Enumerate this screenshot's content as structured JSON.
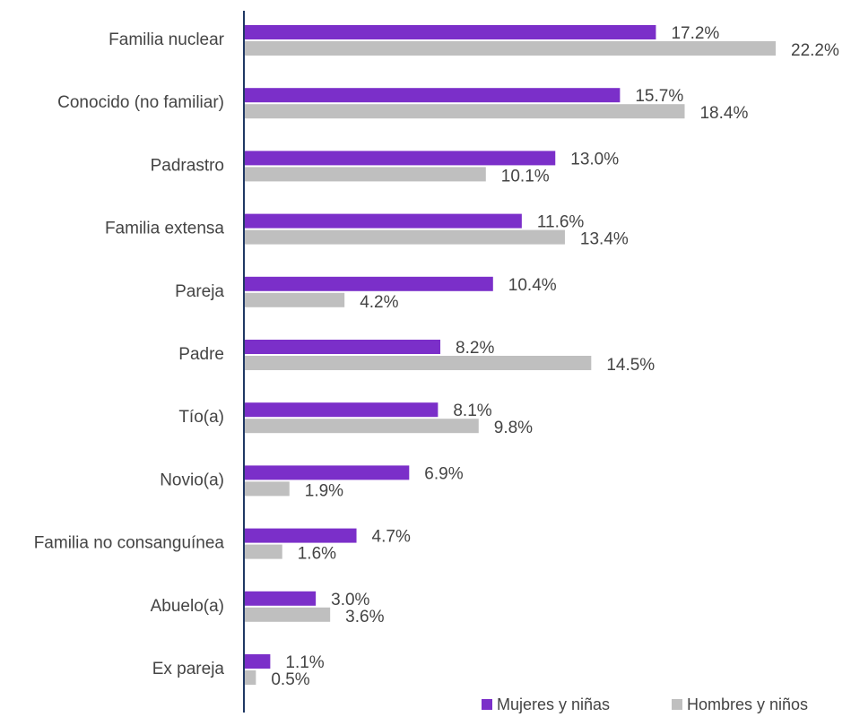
{
  "chart_data": {
    "type": "bar",
    "orientation": "horizontal",
    "categories": [
      "Familia nuclear",
      "Conocido (no familiar)",
      "Padrastro",
      "Familia extensa",
      "Pareja",
      "Padre",
      "Tío(a)",
      "Novio(a)",
      "Familia no consanguínea",
      "Abuelo(a)",
      "Ex pareja"
    ],
    "series": [
      {
        "name": "Mujeres y niñas",
        "color": "#7b2fc9",
        "values": [
          17.2,
          15.7,
          13.0,
          11.6,
          10.4,
          8.2,
          8.1,
          6.9,
          4.7,
          3.0,
          1.1
        ],
        "labels": [
          "17.2%",
          "15.7%",
          "13.0%",
          "11.6%",
          "10.4%",
          "8.2%",
          "8.1%",
          "6.9%",
          "4.7%",
          "3.0%",
          "1.1%"
        ]
      },
      {
        "name": "Hombres y niños",
        "color": "#bfbfbf",
        "values": [
          22.2,
          18.4,
          10.1,
          13.4,
          4.2,
          14.5,
          9.8,
          1.9,
          1.6,
          3.6,
          0.5
        ],
        "labels": [
          "22.2%",
          "18.4%",
          "10.1%",
          "13.4%",
          "4.2%",
          "14.5%",
          "9.8%",
          "1.9%",
          "1.6%",
          "3.6%",
          "0.5%"
        ]
      }
    ],
    "xlim": [
      0,
      22.2
    ],
    "axis_color": "#1f3864",
    "legend": {
      "position": "bottom-right"
    },
    "grid": false
  }
}
